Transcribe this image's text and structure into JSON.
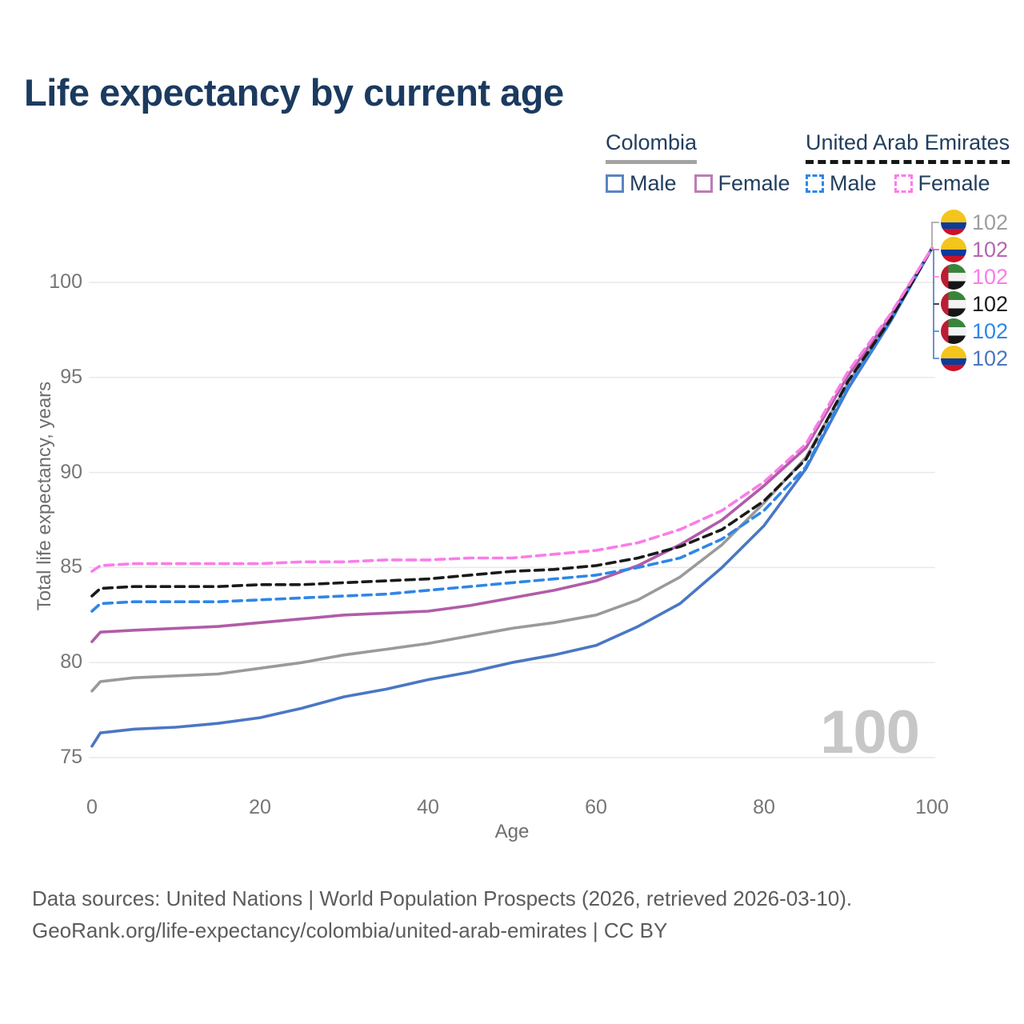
{
  "title": "Life expectancy by current age",
  "legend": {
    "groups": [
      {
        "name": "Colombia",
        "line_style": "solid",
        "underline_color": "#a3a3a3",
        "items": [
          {
            "label": "Male",
            "color": "#5b84c4"
          },
          {
            "label": "Female",
            "color": "#bd7cb5"
          }
        ]
      },
      {
        "name": "United Arab Emirates",
        "line_style": "dashed",
        "underline_color": "#161616",
        "items": [
          {
            "label": "Male",
            "color": "#2e86e8"
          },
          {
            "label": "Female",
            "color": "#fb7ce8"
          }
        ]
      }
    ]
  },
  "chart_data": {
    "type": "line",
    "title": "Life expectancy by current age",
    "xlabel": "Age",
    "ylabel": "Total life expectancy, years",
    "xlim": [
      0,
      100
    ],
    "ylim": [
      75,
      102
    ],
    "xticks": [
      0,
      20,
      40,
      60,
      80,
      100
    ],
    "yticks": [
      75,
      80,
      85,
      90,
      95,
      100
    ],
    "grid": "horizontal",
    "legend_position": "top-right",
    "x": [
      0,
      1,
      5,
      10,
      15,
      20,
      25,
      30,
      35,
      40,
      45,
      50,
      55,
      60,
      65,
      70,
      75,
      80,
      85,
      90,
      95,
      100
    ],
    "series": [
      {
        "name": "Colombia Male",
        "country": "Colombia",
        "sex": "male",
        "color": "#4a77c4",
        "dash": null,
        "values": [
          75.6,
          76.3,
          76.5,
          76.6,
          76.8,
          77.1,
          77.6,
          78.2,
          78.6,
          79.1,
          79.5,
          80.0,
          80.4,
          80.9,
          81.9,
          83.1,
          85.0,
          87.2,
          90.2,
          94.4,
          97.9,
          101.8
        ]
      },
      {
        "name": "Colombia Total",
        "country": "Colombia",
        "sex": "total",
        "color": "#9a9a9a",
        "dash": null,
        "values": [
          78.5,
          79.0,
          79.2,
          79.3,
          79.4,
          79.7,
          80.0,
          80.4,
          80.7,
          81.0,
          81.4,
          81.8,
          82.1,
          82.5,
          83.3,
          84.5,
          86.2,
          88.4,
          90.8,
          94.7,
          98.0,
          101.8
        ]
      },
      {
        "name": "Colombia Female",
        "country": "Colombia",
        "sex": "female",
        "color": "#b05ca8",
        "dash": null,
        "values": [
          81.1,
          81.6,
          81.7,
          81.8,
          81.9,
          82.1,
          82.3,
          82.5,
          82.6,
          82.7,
          83.0,
          83.4,
          83.8,
          84.3,
          85.1,
          86.2,
          87.5,
          89.3,
          91.3,
          95.1,
          98.2,
          101.8
        ]
      },
      {
        "name": "United Arab Emirates Male",
        "country": "United Arab Emirates",
        "sex": "male",
        "color": "#2e86e8",
        "dash": "11 7",
        "values": [
          82.7,
          83.1,
          83.2,
          83.2,
          83.2,
          83.3,
          83.4,
          83.5,
          83.6,
          83.8,
          84.0,
          84.2,
          84.4,
          84.6,
          85.0,
          85.5,
          86.5,
          88.0,
          90.3,
          94.5,
          97.9,
          101.8
        ]
      },
      {
        "name": "United Arab Emirates Total",
        "country": "United Arab Emirates",
        "sex": "total",
        "color": "#1a1a1a",
        "dash": "11 7",
        "values": [
          83.5,
          83.9,
          84.0,
          84.0,
          84.0,
          84.1,
          84.1,
          84.2,
          84.3,
          84.4,
          84.6,
          84.8,
          84.9,
          85.1,
          85.5,
          86.1,
          87.0,
          88.5,
          90.7,
          94.8,
          98.0,
          101.8
        ]
      },
      {
        "name": "United Arab Emirates Female",
        "country": "United Arab Emirates",
        "sex": "female",
        "color": "#fb7ce8",
        "dash": "11 7",
        "values": [
          84.8,
          85.1,
          85.2,
          85.2,
          85.2,
          85.2,
          85.3,
          85.3,
          85.4,
          85.4,
          85.5,
          85.5,
          85.7,
          85.9,
          86.3,
          87.0,
          88.0,
          89.5,
          91.5,
          95.3,
          98.3,
          101.8
        ]
      }
    ],
    "end_labels": [
      {
        "flag": "colombia",
        "value": "102",
        "color": "#9e9e9e",
        "series": "Colombia Total"
      },
      {
        "flag": "colombia",
        "value": "102",
        "color": "#b268ae",
        "series": "Colombia Female"
      },
      {
        "flag": "uae",
        "value": "102",
        "color": "#fb7ce8",
        "series": "United Arab Emirates Female"
      },
      {
        "flag": "uae",
        "value": "102",
        "color": "#1a1a1a",
        "series": "United Arab Emirates Total"
      },
      {
        "flag": "uae",
        "value": "102",
        "color": "#2e86e8",
        "series": "United Arab Emirates Male"
      },
      {
        "flag": "colombia",
        "value": "102",
        "color": "#4a77c0",
        "series": "Colombia Male"
      }
    ]
  },
  "axes": {
    "x_title": "Age",
    "y_title": "Total life expectancy, years"
  },
  "watermark": "100",
  "footer": {
    "line1": "Data sources: United Nations | World Population Prospects (2026, retrieved 2026-03-10).",
    "line2": "GeoRank.org/life-expectancy/colombia/united-arab-emirates | CC BY"
  }
}
